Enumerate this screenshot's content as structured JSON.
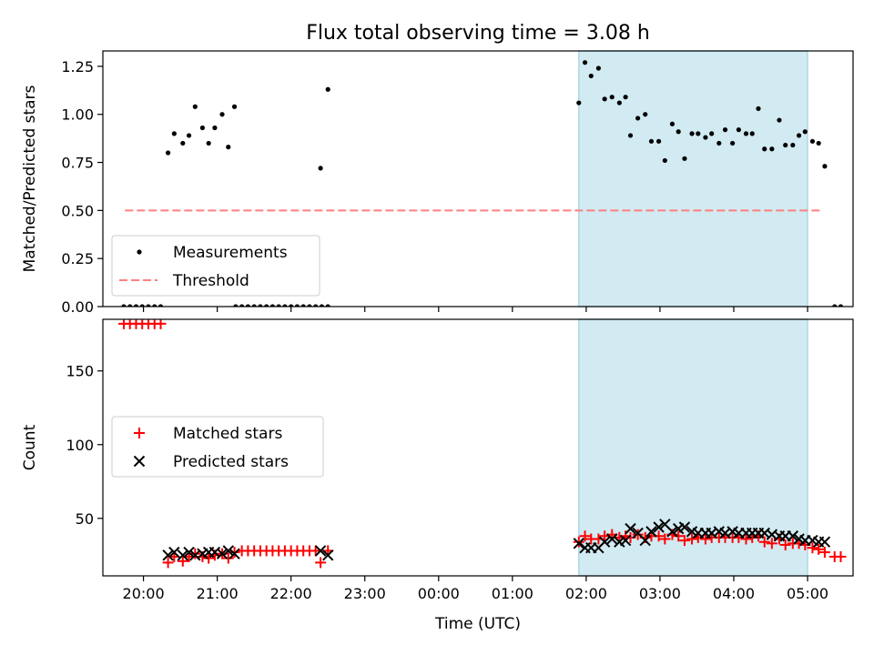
{
  "figure": {
    "title": "Flux total observing time = 3.08 h",
    "xlabel": "Time (UTC)"
  },
  "colors": {
    "measurement": "#000000",
    "threshold": "#ff7f7f",
    "matched": "#ff0000",
    "predicted": "#000000",
    "observing_span": "#add8e6"
  },
  "chart_data": [
    {
      "type": "scatter",
      "panel": "top",
      "ylabel": "Matched/Predicted stars",
      "xlim": [
        "19:27",
        "05:37"
      ],
      "ylim": [
        0,
        1.33
      ],
      "xticks": [
        "20:00",
        "21:00",
        "22:00",
        "23:00",
        "00:00",
        "01:00",
        "02:00",
        "03:00",
        "04:00",
        "05:00"
      ],
      "yticks": [
        "0.00",
        "0.25",
        "0.50",
        "0.75",
        "1.00",
        "1.25"
      ],
      "observing_span": [
        "01:54",
        "05:00"
      ],
      "legend": {
        "position": "lower-left",
        "entries": [
          "Measurements",
          "Threshold"
        ]
      },
      "threshold": {
        "name": "Threshold",
        "y": 0.5,
        "x": [
          "19:45",
          "05:10"
        ]
      },
      "series": [
        {
          "name": "Measurements",
          "marker": "dot",
          "points": [
            [
              "19:44",
              0
            ],
            [
              "19:49",
              0
            ],
            [
              "19:54",
              0
            ],
            [
              "19:59",
              0
            ],
            [
              "20:04",
              0
            ],
            [
              "20:09",
              0
            ],
            [
              "20:14",
              0
            ],
            [
              "20:20",
              0.8
            ],
            [
              "20:25",
              0.9
            ],
            [
              "20:32",
              0.85
            ],
            [
              "20:37",
              0.89
            ],
            [
              "20:42",
              1.04
            ],
            [
              "20:48",
              0.93
            ],
            [
              "20:53",
              0.85
            ],
            [
              "20:58",
              0.93
            ],
            [
              "21:04",
              1.0
            ],
            [
              "21:09",
              0.83
            ],
            [
              "21:14",
              1.04
            ],
            [
              "21:15",
              0
            ],
            [
              "21:20",
              0
            ],
            [
              "21:25",
              0
            ],
            [
              "21:30",
              0
            ],
            [
              "21:35",
              0
            ],
            [
              "21:40",
              0
            ],
            [
              "21:45",
              0
            ],
            [
              "21:50",
              0
            ],
            [
              "21:55",
              0
            ],
            [
              "22:00",
              0
            ],
            [
              "22:05",
              0
            ],
            [
              "22:10",
              0
            ],
            [
              "22:15",
              0
            ],
            [
              "22:20",
              0
            ],
            [
              "22:25",
              0
            ],
            [
              "22:30",
              0
            ],
            [
              "22:24",
              0.72
            ],
            [
              "22:30",
              1.13
            ],
            [
              "01:54",
              1.06
            ],
            [
              "01:59",
              1.27
            ],
            [
              "02:04",
              1.2
            ],
            [
              "02:10",
              1.24
            ],
            [
              "02:15",
              1.08
            ],
            [
              "02:21",
              1.09
            ],
            [
              "02:27",
              1.06
            ],
            [
              "02:32",
              1.09
            ],
            [
              "02:36",
              0.89
            ],
            [
              "02:42",
              0.98
            ],
            [
              "02:48",
              1.0
            ],
            [
              "02:53",
              0.86
            ],
            [
              "02:59",
              0.86
            ],
            [
              "03:04",
              0.76
            ],
            [
              "03:10",
              0.95
            ],
            [
              "03:15",
              0.91
            ],
            [
              "03:20",
              0.77
            ],
            [
              "03:26",
              0.9
            ],
            [
              "03:31",
              0.9
            ],
            [
              "03:37",
              0.88
            ],
            [
              "03:42",
              0.9
            ],
            [
              "03:48",
              0.85
            ],
            [
              "03:53",
              0.92
            ],
            [
              "03:59",
              0.85
            ],
            [
              "04:04",
              0.92
            ],
            [
              "04:10",
              0.9
            ],
            [
              "04:15",
              0.9
            ],
            [
              "04:20",
              1.03
            ],
            [
              "04:25",
              0.82
            ],
            [
              "04:31",
              0.82
            ],
            [
              "04:37",
              0.97
            ],
            [
              "04:42",
              0.84
            ],
            [
              "04:48",
              0.84
            ],
            [
              "04:53",
              0.89
            ],
            [
              "04:58",
              0.91
            ],
            [
              "05:04",
              0.86
            ],
            [
              "05:09",
              0.85
            ],
            [
              "05:14",
              0.73
            ],
            [
              "05:22",
              0
            ],
            [
              "05:27",
              0
            ]
          ]
        }
      ]
    },
    {
      "type": "scatter",
      "panel": "bottom",
      "ylabel": "Count",
      "xlim": [
        "19:27",
        "05:37"
      ],
      "ylim": [
        11,
        185
      ],
      "xticks": [
        "20:00",
        "21:00",
        "22:00",
        "23:00",
        "00:00",
        "01:00",
        "02:00",
        "03:00",
        "04:00",
        "05:00"
      ],
      "yticks": [
        "50",
        "100",
        "150"
      ],
      "observing_span": [
        "01:54",
        "05:00"
      ],
      "legend": {
        "position": "center-left",
        "entries": [
          "Matched stars",
          "Predicted stars"
        ]
      },
      "series": [
        {
          "name": "Matched stars",
          "marker": "plus",
          "points": [
            [
              "19:44",
              182
            ],
            [
              "19:49",
              182
            ],
            [
              "19:54",
              182
            ],
            [
              "19:59",
              182
            ],
            [
              "20:04",
              182
            ],
            [
              "20:09",
              182
            ],
            [
              "20:14",
              182
            ],
            [
              "20:20",
              20
            ],
            [
              "20:25",
              24
            ],
            [
              "20:32",
              21
            ],
            [
              "20:37",
              24
            ],
            [
              "20:42",
              26
            ],
            [
              "20:48",
              24
            ],
            [
              "20:53",
              23
            ],
            [
              "20:58",
              25
            ],
            [
              "21:04",
              26
            ],
            [
              "21:09",
              23
            ],
            [
              "21:14",
              27
            ],
            [
              "21:20",
              28
            ],
            [
              "21:25",
              28
            ],
            [
              "21:30",
              28
            ],
            [
              "21:35",
              28
            ],
            [
              "21:40",
              28
            ],
            [
              "21:45",
              28
            ],
            [
              "21:50",
              28
            ],
            [
              "21:55",
              28
            ],
            [
              "22:00",
              28
            ],
            [
              "22:05",
              28
            ],
            [
              "22:10",
              28
            ],
            [
              "22:15",
              28
            ],
            [
              "22:20",
              28
            ],
            [
              "22:24",
              20
            ],
            [
              "22:30",
              28
            ],
            [
              "01:54",
              34
            ],
            [
              "01:59",
              38
            ],
            [
              "02:04",
              36
            ],
            [
              "02:10",
              36
            ],
            [
              "02:15",
              38
            ],
            [
              "02:21",
              39
            ],
            [
              "02:27",
              37
            ],
            [
              "02:32",
              38
            ],
            [
              "02:36",
              37
            ],
            [
              "02:42",
              39
            ],
            [
              "02:48",
              37
            ],
            [
              "02:53",
              38
            ],
            [
              "02:59",
              38
            ],
            [
              "03:04",
              36
            ],
            [
              "03:10",
              39
            ],
            [
              "03:15",
              38
            ],
            [
              "03:20",
              35
            ],
            [
              "03:26",
              36
            ],
            [
              "03:31",
              37
            ],
            [
              "03:37",
              36
            ],
            [
              "03:42",
              37
            ],
            [
              "03:48",
              37
            ],
            [
              "03:53",
              37
            ],
            [
              "03:59",
              37
            ],
            [
              "04:04",
              37
            ],
            [
              "04:10",
              36
            ],
            [
              "04:15",
              37
            ],
            [
              "04:20",
              38
            ],
            [
              "04:25",
              34
            ],
            [
              "04:31",
              33
            ],
            [
              "04:37",
              36
            ],
            [
              "04:42",
              32
            ],
            [
              "04:48",
              33
            ],
            [
              "04:53",
              33
            ],
            [
              "04:58",
              32
            ],
            [
              "05:04",
              30
            ],
            [
              "05:09",
              29
            ],
            [
              "05:14",
              27
            ],
            [
              "05:22",
              24
            ],
            [
              "05:27",
              24
            ]
          ]
        },
        {
          "name": "Predicted stars",
          "marker": "x",
          "points": [
            [
              "20:20",
              25
            ],
            [
              "20:25",
              27
            ],
            [
              "20:32",
              25
            ],
            [
              "20:37",
              27
            ],
            [
              "20:42",
              25
            ],
            [
              "20:48",
              26
            ],
            [
              "20:53",
              27
            ],
            [
              "20:58",
              27
            ],
            [
              "21:04",
              26
            ],
            [
              "21:09",
              28
            ],
            [
              "21:14",
              26
            ],
            [
              "22:24",
              28
            ],
            [
              "22:30",
              25
            ],
            [
              "01:54",
              33
            ],
            [
              "01:59",
              30
            ],
            [
              "02:04",
              30
            ],
            [
              "02:10",
              30
            ],
            [
              "02:15",
              34
            ],
            [
              "02:21",
              36
            ],
            [
              "02:27",
              34
            ],
            [
              "02:32",
              35
            ],
            [
              "02:36",
              43
            ],
            [
              "02:42",
              40
            ],
            [
              "02:48",
              35
            ],
            [
              "02:53",
              41
            ],
            [
              "02:59",
              44
            ],
            [
              "03:04",
              46
            ],
            [
              "03:10",
              41
            ],
            [
              "03:15",
              43
            ],
            [
              "03:20",
              44
            ],
            [
              "03:26",
              41
            ],
            [
              "03:31",
              40
            ],
            [
              "03:37",
              40
            ],
            [
              "03:42",
              40
            ],
            [
              "03:48",
              41
            ],
            [
              "03:53",
              40
            ],
            [
              "03:59",
              41
            ],
            [
              "04:04",
              40
            ],
            [
              "04:10",
              40
            ],
            [
              "04:15",
              40
            ],
            [
              "04:20",
              40
            ],
            [
              "04:25",
              40
            ],
            [
              "04:31",
              39
            ],
            [
              "04:37",
              38
            ],
            [
              "04:42",
              38
            ],
            [
              "04:48",
              38
            ],
            [
              "04:53",
              36
            ],
            [
              "04:58",
              35
            ],
            [
              "05:04",
              35
            ],
            [
              "05:09",
              34
            ],
            [
              "05:14",
              34
            ]
          ]
        }
      ]
    }
  ]
}
